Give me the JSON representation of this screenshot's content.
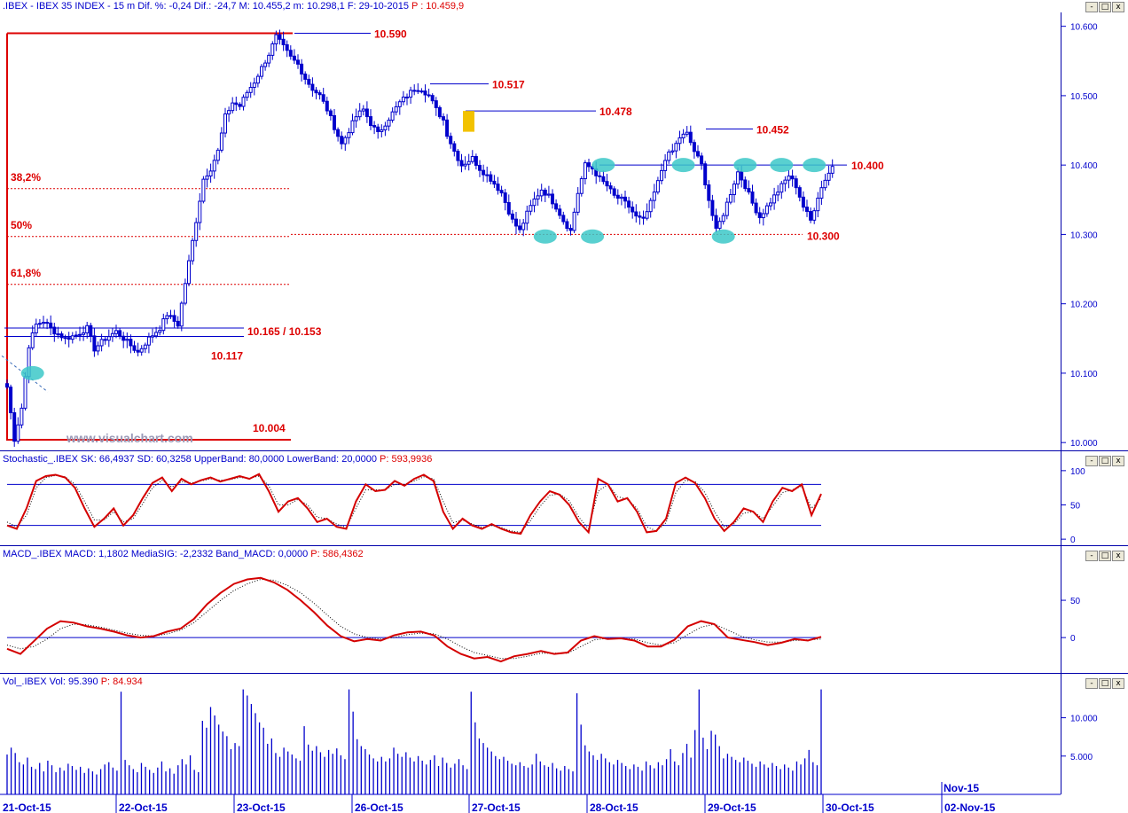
{
  "panes": {
    "price": {
      "header_label": ".IBEX - IBEX 35 INDEX - 15 m  Dif. %: -0,24  Dif.: -24,7  M: 10.455,2  m: 10.298,1  F: 29-10-2015",
      "header_last": "P : 10.459,9",
      "watermark": "www.visualchart.com"
    },
    "stochastic": {
      "header_label": "Stochastic_.IBEX SK: 66,4937  SD: 60,3258  UpperBand: 80,0000  LowerBand: 20,0000",
      "header_last": "P: 593,9936"
    },
    "macd": {
      "header_label": "MACD_.IBEX MACD: 1,1802  MediaSIG: -2,2332  Band_MACD: 0,0000",
      "header_last": "P: 586,4362"
    },
    "volume": {
      "header_label": "Vol_.IBEX Vol: 95.390",
      "header_last": "P: 84.934"
    }
  },
  "window_buttons": [
    "-",
    "□",
    "x"
  ],
  "colors": {
    "accent_blue": "#0000cc",
    "accent_red": "#dd0000",
    "highlight_cyan": "#3cc8c8",
    "highlight_yellow": "#f2c200"
  },
  "chart_data": [
    {
      "type": "candlestick",
      "title": ".IBEX - IBEX 35 INDEX - 15 m",
      "ylim": [
        9990,
        10620
      ],
      "y_ticks": [
        "10.600",
        "10.500",
        "10.400",
        "10.300",
        "10.200",
        "10.100",
        "10.000"
      ],
      "x_ticks": [
        "21-Oct-15",
        "22-Oct-15",
        "23-Oct-15",
        "26-Oct-15",
        "27-Oct-15",
        "28-Oct-15",
        "29-Oct-15",
        "30-Oct-15",
        "Nov-15",
        "02-Nov-15"
      ],
      "trend_path": [
        [
          0,
          10080
        ],
        [
          2,
          10005
        ],
        [
          4,
          10050
        ],
        [
          6,
          10140
        ],
        [
          8,
          10170
        ],
        [
          10,
          10175
        ],
        [
          13,
          10160
        ],
        [
          16,
          10150
        ],
        [
          19,
          10155
        ],
        [
          22,
          10165
        ],
        [
          24,
          10135
        ],
        [
          27,
          10150
        ],
        [
          30,
          10160
        ],
        [
          33,
          10145
        ],
        [
          36,
          10130
        ],
        [
          39,
          10150
        ],
        [
          42,
          10165
        ],
        [
          44,
          10185
        ],
        [
          47,
          10170
        ],
        [
          50,
          10260
        ],
        [
          52,
          10320
        ],
        [
          54,
          10380
        ],
        [
          56,
          10395
        ],
        [
          58,
          10420
        ],
        [
          60,
          10470
        ],
        [
          62,
          10490
        ],
        [
          64,
          10485
        ],
        [
          66,
          10505
        ],
        [
          68,
          10520
        ],
        [
          70,
          10540
        ],
        [
          72,
          10560
        ],
        [
          74,
          10585
        ],
        [
          76,
          10570
        ],
        [
          78,
          10555
        ],
        [
          80,
          10545
        ],
        [
          82,
          10525
        ],
        [
          84,
          10510
        ],
        [
          86,
          10500
        ],
        [
          88,
          10480
        ],
        [
          90,
          10455
        ],
        [
          92,
          10430
        ],
        [
          94,
          10450
        ],
        [
          96,
          10470
        ],
        [
          98,
          10480
        ],
        [
          100,
          10460
        ],
        [
          102,
          10445
        ],
        [
          104,
          10460
        ],
        [
          106,
          10475
        ],
        [
          108,
          10490
        ],
        [
          110,
          10500
        ],
        [
          112,
          10510
        ],
        [
          114,
          10510
        ],
        [
          116,
          10500
        ],
        [
          118,
          10480
        ],
        [
          120,
          10465
        ],
        [
          121,
          10445
        ],
        [
          123,
          10420
        ],
        [
          125,
          10400
        ],
        [
          128,
          10410
        ],
        [
          130,
          10395
        ],
        [
          133,
          10380
        ],
        [
          136,
          10360
        ],
        [
          139,
          10320
        ],
        [
          141,
          10305
        ],
        [
          143,
          10330
        ],
        [
          145,
          10350
        ],
        [
          147,
          10365
        ],
        [
          149,
          10355
        ],
        [
          151,
          10340
        ],
        [
          153,
          10320
        ],
        [
          155,
          10305
        ],
        [
          157,
          10360
        ],
        [
          159,
          10400
        ],
        [
          161,
          10395
        ],
        [
          163,
          10380
        ],
        [
          165,
          10370
        ],
        [
          167,
          10355
        ],
        [
          169,
          10350
        ],
        [
          171,
          10340
        ],
        [
          173,
          10325
        ],
        [
          175,
          10320
        ],
        [
          177,
          10345
        ],
        [
          179,
          10375
        ],
        [
          181,
          10410
        ],
        [
          183,
          10420
        ],
        [
          185,
          10440
        ],
        [
          187,
          10445
        ],
        [
          189,
          10420
        ],
        [
          191,
          10400
        ],
        [
          193,
          10350
        ],
        [
          195,
          10305
        ],
        [
          197,
          10330
        ],
        [
          199,
          10360
        ],
        [
          201,
          10390
        ],
        [
          203,
          10370
        ],
        [
          205,
          10345
        ],
        [
          207,
          10325
        ],
        [
          209,
          10340
        ],
        [
          211,
          10355
        ],
        [
          213,
          10370
        ],
        [
          215,
          10385
        ],
        [
          217,
          10370
        ],
        [
          219,
          10340
        ],
        [
          221,
          10320
        ],
        [
          223,
          10355
        ],
        [
          225,
          10380
        ],
        [
          227,
          10398
        ]
      ],
      "levels": [
        {
          "label": "10.590",
          "value": 10590
        },
        {
          "label": "10.517",
          "value": 10517
        },
        {
          "label": "10.478",
          "value": 10478
        },
        {
          "label": "10.452",
          "value": 10452
        },
        {
          "label": "10.400",
          "value": 10400
        },
        {
          "label": "10.300",
          "value": 10300
        },
        {
          "label": "10.165 / 10.153",
          "values": [
            10165,
            10153
          ]
        },
        {
          "label": "10.117",
          "value": 10117
        },
        {
          "label": "10.004",
          "value": 10004
        }
      ],
      "fibonacci": [
        {
          "label": "38,2%",
          "value": 10366
        },
        {
          "label": "50%",
          "value": 10297
        },
        {
          "label": "61,8%",
          "value": 10228
        }
      ],
      "highlight_points": [
        {
          "bar": 7,
          "value": 10100
        },
        {
          "bar": 148,
          "value": 10297
        },
        {
          "bar": 161,
          "value": 10297
        },
        {
          "bar": 164,
          "value": 10400
        },
        {
          "bar": 186,
          "value": 10400
        },
        {
          "bar": 197,
          "value": 10297
        },
        {
          "bar": 203,
          "value": 10400
        },
        {
          "bar": 213,
          "value": 10400
        },
        {
          "bar": 222,
          "value": 10400
        }
      ]
    },
    {
      "type": "line",
      "title": "Stochastic_.IBEX",
      "ylim": [
        -5,
        105
      ],
      "y_ticks": [
        "100",
        "50",
        "0"
      ],
      "bands": [
        80,
        20
      ],
      "series": [
        {
          "name": "SK",
          "values": [
            20,
            15,
            45,
            85,
            92,
            94,
            90,
            75,
            45,
            18,
            30,
            45,
            20,
            35,
            60,
            82,
            90,
            70,
            88,
            80,
            86,
            90,
            84,
            88,
            92,
            88,
            95,
            70,
            40,
            55,
            60,
            45,
            25,
            30,
            18,
            15,
            55,
            80,
            70,
            72,
            85,
            78,
            88,
            94,
            85,
            40,
            15,
            30,
            20,
            15,
            22,
            15,
            10,
            8,
            35,
            55,
            70,
            65,
            50,
            25,
            10,
            88,
            80,
            55,
            60,
            40,
            10,
            12,
            30,
            82,
            90,
            82,
            60,
            30,
            12,
            25,
            45,
            40,
            25,
            55,
            75,
            70,
            80,
            35,
            66
          ]
        },
        {
          "name": "SD",
          "values": [
            25,
            18,
            35,
            75,
            90,
            93,
            91,
            80,
            55,
            28,
            28,
            40,
            25,
            30,
            52,
            75,
            86,
            76,
            84,
            82,
            85,
            88,
            86,
            87,
            90,
            89,
            92,
            78,
            50,
            50,
            58,
            50,
            32,
            30,
            22,
            17,
            45,
            72,
            72,
            72,
            80,
            80,
            85,
            91,
            88,
            55,
            24,
            28,
            22,
            17,
            20,
            17,
            12,
            10,
            27,
            48,
            64,
            66,
            56,
            32,
            15,
            70,
            80,
            62,
            58,
            45,
            18,
            12,
            24,
            68,
            86,
            84,
            68,
            40,
            18,
            22,
            38,
            40,
            30,
            48,
            68,
            72,
            77,
            45,
            60
          ]
        }
      ]
    },
    {
      "type": "line",
      "title": "MACD_.IBEX",
      "ylim": [
        -45,
        100
      ],
      "y_ticks": [
        "50",
        "0"
      ],
      "zero_line": 0,
      "series": [
        {
          "name": "MACD",
          "values": [
            -15,
            -22,
            -5,
            12,
            22,
            20,
            15,
            12,
            8,
            3,
            0,
            2,
            8,
            12,
            25,
            45,
            60,
            72,
            78,
            80,
            74,
            64,
            50,
            34,
            16,
            2,
            -5,
            -2,
            -4,
            3,
            7,
            8,
            3,
            -12,
            -22,
            -28,
            -26,
            -32,
            -25,
            -22,
            -18,
            -22,
            -20,
            -4,
            2,
            -2,
            -1,
            -4,
            -12,
            -12,
            -3,
            15,
            22,
            18,
            0,
            -3,
            -6,
            -10,
            -7,
            -2,
            -4,
            1
          ]
        },
        {
          "name": "MediaSIG",
          "values": [
            -10,
            -15,
            -12,
            -2,
            12,
            18,
            17,
            14,
            10,
            6,
            3,
            2,
            5,
            10,
            20,
            35,
            50,
            63,
            72,
            78,
            77,
            70,
            60,
            46,
            30,
            15,
            5,
            0,
            -2,
            0,
            4,
            6,
            5,
            -2,
            -12,
            -20,
            -24,
            -28,
            -28,
            -25,
            -21,
            -21,
            -21,
            -12,
            -3,
            -1,
            -1,
            -2,
            -7,
            -10,
            -7,
            4,
            14,
            18,
            10,
            2,
            -3,
            -6,
            -6,
            -4,
            -3,
            -2
          ]
        }
      ]
    },
    {
      "type": "bar",
      "title": "Vol_.IBEX",
      "ylim": [
        0,
        14000
      ],
      "y_ticks": [
        "10.000",
        "5.000"
      ],
      "values": [
        5200,
        6100,
        5400,
        4200,
        3900,
        4800,
        3600,
        3300,
        4100,
        3000,
        4400,
        3800,
        2900,
        3500,
        3100,
        4000,
        3700,
        3200,
        3600,
        2800,
        3400,
        3000,
        2600,
        3300,
        3900,
        4200,
        3500,
        3100,
        13400,
        4500,
        3800,
        3300,
        2900,
        4100,
        3600,
        3200,
        2800,
        3500,
        4300,
        3000,
        3400,
        2700,
        3800,
        4600,
        3900,
        5100,
        3200,
        2900,
        9600,
        8700,
        11400,
        10300,
        9100,
        8200,
        7600,
        5900,
        6700,
        6300,
        13700,
        12900,
        11800,
        10600,
        9400,
        8700,
        6600,
        7300,
        5400,
        4900,
        6100,
        5600,
        5200,
        4700,
        4400,
        8900,
        6500,
        5700,
        6300,
        5500,
        4900,
        5800,
        5300,
        6000,
        5100,
        4600,
        13700,
        10800,
        7200,
        6300,
        5900,
        5200,
        4700,
        4300,
        4900,
        4300,
        4700,
        6100,
        5300,
        4900,
        5500,
        4800,
        4300,
        5000,
        4400,
        3900,
        4500,
        5100,
        3700,
        4800,
        4100,
        3500,
        4000,
        4600,
        3800,
        3300,
        13400,
        9400,
        7300,
        6700,
        6100,
        5600,
        5000,
        4600,
        4900,
        4400,
        4000,
        3800,
        4200,
        3700,
        3500,
        3900,
        5300,
        4300,
        3800,
        3600,
        4100,
        3400,
        3100,
        3700,
        3300,
        3000,
        13200,
        9100,
        6400,
        5600,
        5100,
        4500,
        5300,
        4700,
        4200,
        3900,
        4500,
        4100,
        3700,
        3300,
        3900,
        3600,
        3100,
        4300,
        3800,
        3400,
        4200,
        3800,
        4600,
        5900,
        4300,
        3800,
        5400,
        6600,
        4800,
        8400,
        13700,
        7400,
        5900,
        8300,
        7800,
        6300,
        4700,
        5300,
        4900,
        4500,
        4200,
        4800,
        4400,
        4000,
        3600,
        4300,
        3900,
        3500,
        4100,
        3700,
        3300,
        3900,
        3500,
        3100,
        4300,
        3900,
        4700,
        5800,
        4200,
        3800,
        13700
      ]
    }
  ]
}
